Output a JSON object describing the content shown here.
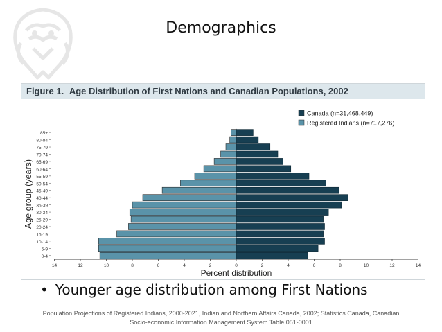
{
  "slide": {
    "title": "Demographics",
    "bullet": "Younger age distribution among First Nations",
    "source_line1": "Population Projections of Registered Indians, 2000-2021, Indian and Northern Affairs Canada, 2002; Statistics Canada, Canadian",
    "source_line2": "Socio-economic Information Management System Table 051-0001"
  },
  "figure": {
    "label": "Figure 1.",
    "title": "Age Distribution of First Nations and Canadian Populations, 2002"
  },
  "logo": {
    "icon": "thunderbird-emblem-icon",
    "color": "#e8e8e8"
  },
  "chart_data": {
    "type": "bar",
    "orientation": "horizontal-population-pyramid",
    "categories": [
      "0-4",
      "5-9",
      "10-14",
      "15-19",
      "20-24",
      "25-29",
      "30-34",
      "35-39",
      "40-44",
      "45-49",
      "50-54",
      "55-59",
      "60-64",
      "65-69",
      "70-74",
      "75-79",
      "80-84",
      "85+"
    ],
    "series": [
      {
        "name": "Canada (n=31,468,449)",
        "side": "right",
        "color": "#173f52",
        "values": [
          5.5,
          6.3,
          6.8,
          6.7,
          6.8,
          6.7,
          7.1,
          8.1,
          8.6,
          7.9,
          6.9,
          5.6,
          4.2,
          3.6,
          3.2,
          2.6,
          1.7,
          1.3
        ]
      },
      {
        "name": "Registered Indians (n=717,276)",
        "side": "left",
        "color": "#5a93a9",
        "values": [
          10.5,
          10.6,
          10.6,
          9.2,
          8.3,
          8.1,
          8.2,
          8.0,
          7.2,
          5.7,
          4.3,
          3.2,
          2.5,
          1.7,
          1.2,
          0.8,
          0.5,
          0.4
        ]
      }
    ],
    "xlabel": "Percent distribution",
    "ylabel": "Age group (years)",
    "xlim": [
      -14,
      14
    ],
    "xticks": [
      14,
      12,
      10,
      8,
      6,
      4,
      2,
      0,
      2,
      4,
      6,
      8,
      10,
      12,
      14
    ],
    "grid": false,
    "legend_position": "top-right"
  }
}
